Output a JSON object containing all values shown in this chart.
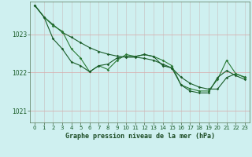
{
  "bg_color": "#cff0f0",
  "plot_bg_color": "#cff0f0",
  "grid_color": "#b8d8d8",
  "vgrid_color": "#e8b8b8",
  "line_dark": "#1a5c28",
  "line_mid": "#2a7a35",
  "title": "Graphe pression niveau de la mer (hPa)",
  "xlim": [
    -0.5,
    23.5
  ],
  "ylim": [
    1020.7,
    1023.85
  ],
  "yticks": [
    1021,
    1022,
    1023
  ],
  "xticks": [
    0,
    1,
    2,
    3,
    4,
    5,
    6,
    7,
    8,
    9,
    10,
    11,
    12,
    13,
    14,
    15,
    16,
    17,
    18,
    19,
    20,
    21,
    22,
    23
  ],
  "series1": [
    1023.75,
    1023.45,
    1023.25,
    1023.05,
    1022.92,
    1022.78,
    1022.65,
    1022.55,
    1022.48,
    1022.43,
    1022.4,
    1022.4,
    1022.37,
    1022.32,
    1022.22,
    1022.12,
    1021.88,
    1021.72,
    1021.62,
    1021.57,
    1021.57,
    1021.87,
    1021.97,
    1021.88
  ],
  "series2": [
    1023.75,
    1023.45,
    1023.22,
    1023.08,
    1022.62,
    1022.38,
    1022.02,
    1022.18,
    1022.08,
    1022.32,
    1022.47,
    1022.42,
    1022.47,
    1022.42,
    1022.32,
    1022.18,
    1021.68,
    1021.58,
    1021.52,
    1021.52,
    1021.82,
    1022.32,
    1021.97,
    1021.87
  ],
  "series3": [
    1023.75,
    1023.45,
    1022.88,
    1022.62,
    1022.28,
    1022.18,
    1022.02,
    1022.18,
    1022.22,
    1022.38,
    1022.42,
    1022.42,
    1022.47,
    1022.42,
    1022.18,
    1022.12,
    1021.68,
    1021.52,
    1021.47,
    1021.47,
    1021.87,
    1022.05,
    1021.92,
    1021.82
  ]
}
